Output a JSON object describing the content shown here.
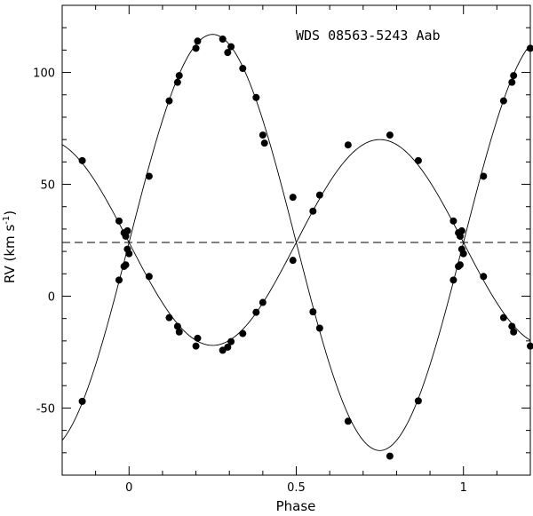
{
  "chart_data": {
    "type": "scatter",
    "title": "WDS 08563-5243 Aab",
    "xlabel": "Phase",
    "ylabel_main": "RV (km s",
    "ylabel_exp": "-1",
    "ylabel_close": ")",
    "xlim": [
      -0.2,
      1.2
    ],
    "ylim": [
      -80,
      130
    ],
    "xticks": [
      0,
      0.5,
      1
    ],
    "xtick_labels": [
      "0",
      "0.5",
      "1"
    ],
    "yticks": [
      -50,
      0,
      50,
      100
    ],
    "ytick_labels": [
      "-50",
      "0",
      "50",
      "100"
    ],
    "grid": false,
    "gamma": 24,
    "orbit": {
      "primary": {
        "K": 46,
        "peak_phase": 0.25
      },
      "secondary": {
        "K": 93,
        "peak_phase": 0.25
      }
    },
    "series": [
      {
        "points": [
          [
            -0.14,
            60.6
          ],
          [
            -0.03,
            33.6
          ],
          [
            -0.015,
            28.3
          ],
          [
            -0.01,
            26.8
          ],
          [
            -0.005,
            29.2
          ],
          [
            0.06,
            53.6
          ],
          [
            0.12,
            -9.6
          ],
          [
            0.145,
            -13.5
          ],
          [
            0.15,
            -16.0
          ],
          [
            0.2,
            -22.3
          ],
          [
            0.205,
            -18.8
          ],
          [
            0.28,
            -24.2
          ],
          [
            0.295,
            -22.8
          ],
          [
            0.305,
            -20.3
          ],
          [
            0.34,
            -16.7
          ],
          [
            0.38,
            -7.2
          ],
          [
            0.4,
            -2.8
          ],
          [
            0.49,
            16.0
          ],
          [
            0.55,
            38.0
          ],
          [
            0.57,
            45.2
          ],
          [
            0.655,
            67.6
          ],
          [
            0.78,
            72.0
          ],
          [
            0.865,
            60.6
          ],
          [
            0.97,
            33.6
          ],
          [
            0.985,
            28.3
          ],
          [
            0.99,
            26.8
          ],
          [
            0.995,
            29.2
          ],
          [
            1.06,
            53.6
          ],
          [
            1.12,
            -9.6
          ],
          [
            1.145,
            -13.5
          ],
          [
            1.15,
            -16.0
          ],
          [
            1.2,
            -22.3
          ]
        ]
      },
      {
        "points": [
          [
            -0.14,
            -47.0
          ],
          [
            -0.03,
            7.2
          ],
          [
            -0.015,
            13.3
          ],
          [
            -0.01,
            14.0
          ],
          [
            -0.005,
            21.0
          ],
          [
            0.0,
            19.0
          ],
          [
            0.06,
            8.8
          ],
          [
            0.12,
            87.3
          ],
          [
            0.145,
            95.6
          ],
          [
            0.15,
            98.6
          ],
          [
            0.2,
            110.8
          ],
          [
            0.205,
            114.0
          ],
          [
            0.28,
            114.9
          ],
          [
            0.295,
            108.9
          ],
          [
            0.305,
            111.5
          ],
          [
            0.34,
            101.8
          ],
          [
            0.38,
            88.8
          ],
          [
            0.4,
            72.0
          ],
          [
            0.405,
            68.4
          ],
          [
            0.49,
            44.2
          ],
          [
            0.55,
            -7.0
          ],
          [
            0.57,
            -14.3
          ],
          [
            0.655,
            -55.9
          ],
          [
            0.78,
            -71.5
          ],
          [
            0.865,
            -46.8
          ],
          [
            0.97,
            7.2
          ],
          [
            0.985,
            13.3
          ],
          [
            0.99,
            14.0
          ],
          [
            0.995,
            21.0
          ],
          [
            1.0,
            19.0
          ],
          [
            1.06,
            8.8
          ],
          [
            1.12,
            87.3
          ],
          [
            1.145,
            95.6
          ],
          [
            1.15,
            98.6
          ],
          [
            1.2,
            110.8
          ]
        ]
      }
    ]
  }
}
